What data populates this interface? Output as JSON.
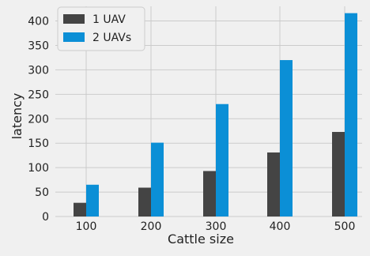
{
  "chart_data": {
    "type": "bar",
    "title": "",
    "xlabel": "Cattle size",
    "ylabel": "latency",
    "categories": [
      "100",
      "200",
      "300",
      "400",
      "500"
    ],
    "series": [
      {
        "name": "1 UAV",
        "values": [
          28,
          59,
          93,
          131,
          173
        ],
        "color": "#444444"
      },
      {
        "name": "2 UAVs",
        "values": [
          65,
          151,
          230,
          320,
          416
        ],
        "color": "#0b8fd6"
      }
    ],
    "yticks": [
      "0",
      "50",
      "100",
      "150",
      "200",
      "250",
      "300",
      "350",
      "400"
    ],
    "ylim": [
      0,
      430
    ],
    "grid": true,
    "legend_position": "top-left",
    "colors": {
      "background": "#f0f0f0",
      "grid": "#cbcbcb",
      "text": "#222222"
    }
  }
}
